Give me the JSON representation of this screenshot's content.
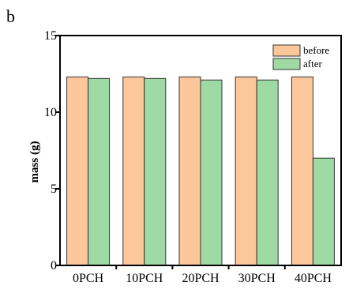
{
  "panel_label": "b",
  "colors": {
    "before": "#fcc89b",
    "after": "#9fd9a4",
    "bar_stroke": "#333333",
    "axis": "#000000"
  },
  "chart_data": {
    "type": "bar",
    "title": "",
    "xlabel": "",
    "ylabel": "mass (g)",
    "ylim": [
      0,
      15
    ],
    "yticks": [
      0,
      5,
      10,
      15
    ],
    "categories": [
      "0PCH",
      "10PCH",
      "20PCH",
      "30PCH",
      "40PCH"
    ],
    "series": [
      {
        "name": "before",
        "values": [
          12.3,
          12.3,
          12.3,
          12.3,
          12.3
        ]
      },
      {
        "name": "after",
        "values": [
          12.2,
          12.2,
          12.1,
          12.1,
          7.0
        ]
      }
    ],
    "legend_position": "top-right",
    "grid": false
  }
}
